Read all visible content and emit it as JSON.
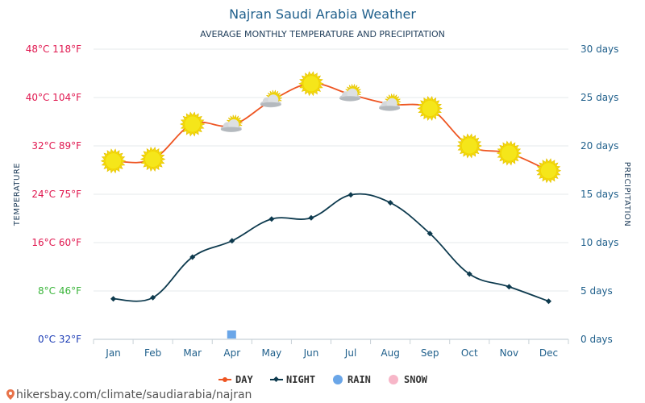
{
  "header": {
    "title": "Najran Saudi Arabia Weather",
    "subtitle": "AVERAGE MONTHLY TEMPERATURE AND PRECIPITATION"
  },
  "footer": {
    "url": "hikersbay.com/climate/saudiarabia/najran"
  },
  "colors": {
    "day": "#ee5522",
    "night": "#0d3a4e",
    "rain": "#6aa6e8",
    "snow": "#f7b6c8",
    "title": "#1f5f8b",
    "sun": "#f5e61a"
  },
  "chart_data": {
    "type": "line",
    "title": "Najran Saudi Arabia Weather",
    "subtitle": "AVERAGE MONTHLY TEMPERATURE AND PRECIPITATION",
    "categories": [
      "Jan",
      "Feb",
      "Mar",
      "Apr",
      "May",
      "Jun",
      "Jul",
      "Aug",
      "Sep",
      "Oct",
      "Nov",
      "Dec"
    ],
    "ylabel_left": "TEMPERATURE",
    "ylabel_right": "PRECIPITATION",
    "ylim_left": [
      0,
      48
    ],
    "ylim_right": [
      0,
      30
    ],
    "yticks_left": [
      {
        "value": 0,
        "label": "0°C 32°F",
        "color": "#1a3bb5"
      },
      {
        "value": 8,
        "label": "8°C 46°F",
        "color": "#3bb53b"
      },
      {
        "value": 16,
        "label": "16°C 60°F",
        "color": "#e0174f"
      },
      {
        "value": 24,
        "label": "24°C 75°F",
        "color": "#e0174f"
      },
      {
        "value": 32,
        "label": "32°C 89°F",
        "color": "#e0174f"
      },
      {
        "value": 40,
        "label": "40°C 104°F",
        "color": "#e0174f"
      },
      {
        "value": 48,
        "label": "48°C 118°F",
        "color": "#e0174f"
      }
    ],
    "yticks_right": [
      {
        "value": 0,
        "label": "0 days"
      },
      {
        "value": 5,
        "label": "5 days"
      },
      {
        "value": 10,
        "label": "10 days"
      },
      {
        "value": 15,
        "label": "15 days"
      },
      {
        "value": 20,
        "label": "20 days"
      },
      {
        "value": 25,
        "label": "25 days"
      },
      {
        "value": 30,
        "label": "30 days"
      }
    ],
    "series": [
      {
        "name": "DAY",
        "axis": "left",
        "values": [
          29.5,
          29.8,
          35.6,
          35.4,
          39.5,
          42.3,
          40.5,
          38.9,
          38.2,
          32.0,
          30.8,
          27.9
        ]
      },
      {
        "name": "NIGHT",
        "axis": "left",
        "values": [
          6.7,
          6.9,
          13.6,
          16.3,
          19.9,
          20.1,
          23.9,
          22.6,
          17.5,
          10.8,
          8.7,
          6.3
        ]
      },
      {
        "name": "RAIN",
        "axis": "right",
        "values": [
          0,
          0,
          0,
          0.5,
          0,
          0,
          0,
          0,
          0,
          0,
          0,
          0
        ]
      },
      {
        "name": "SNOW",
        "axis": "right",
        "values": [
          0,
          0,
          0,
          0,
          0,
          0,
          0,
          0,
          0,
          0,
          0,
          0
        ]
      }
    ],
    "day_icons": [
      "sun",
      "sun",
      "sun",
      "partly-cloudy",
      "partly-cloudy",
      "sun",
      "partly-cloudy",
      "partly-cloudy",
      "sun",
      "sun",
      "sun",
      "sun"
    ],
    "legend": {
      "position": "bottom",
      "items": [
        {
          "label": "DAY",
          "color": "#ee5522",
          "marker": "line-dot"
        },
        {
          "label": "NIGHT",
          "color": "#0d3a4e",
          "marker": "line-diamond"
        },
        {
          "label": "RAIN",
          "color": "#6aa6e8",
          "marker": "circle"
        },
        {
          "label": "SNOW",
          "color": "#f7b6c8",
          "marker": "circle"
        }
      ]
    },
    "grid": true
  }
}
